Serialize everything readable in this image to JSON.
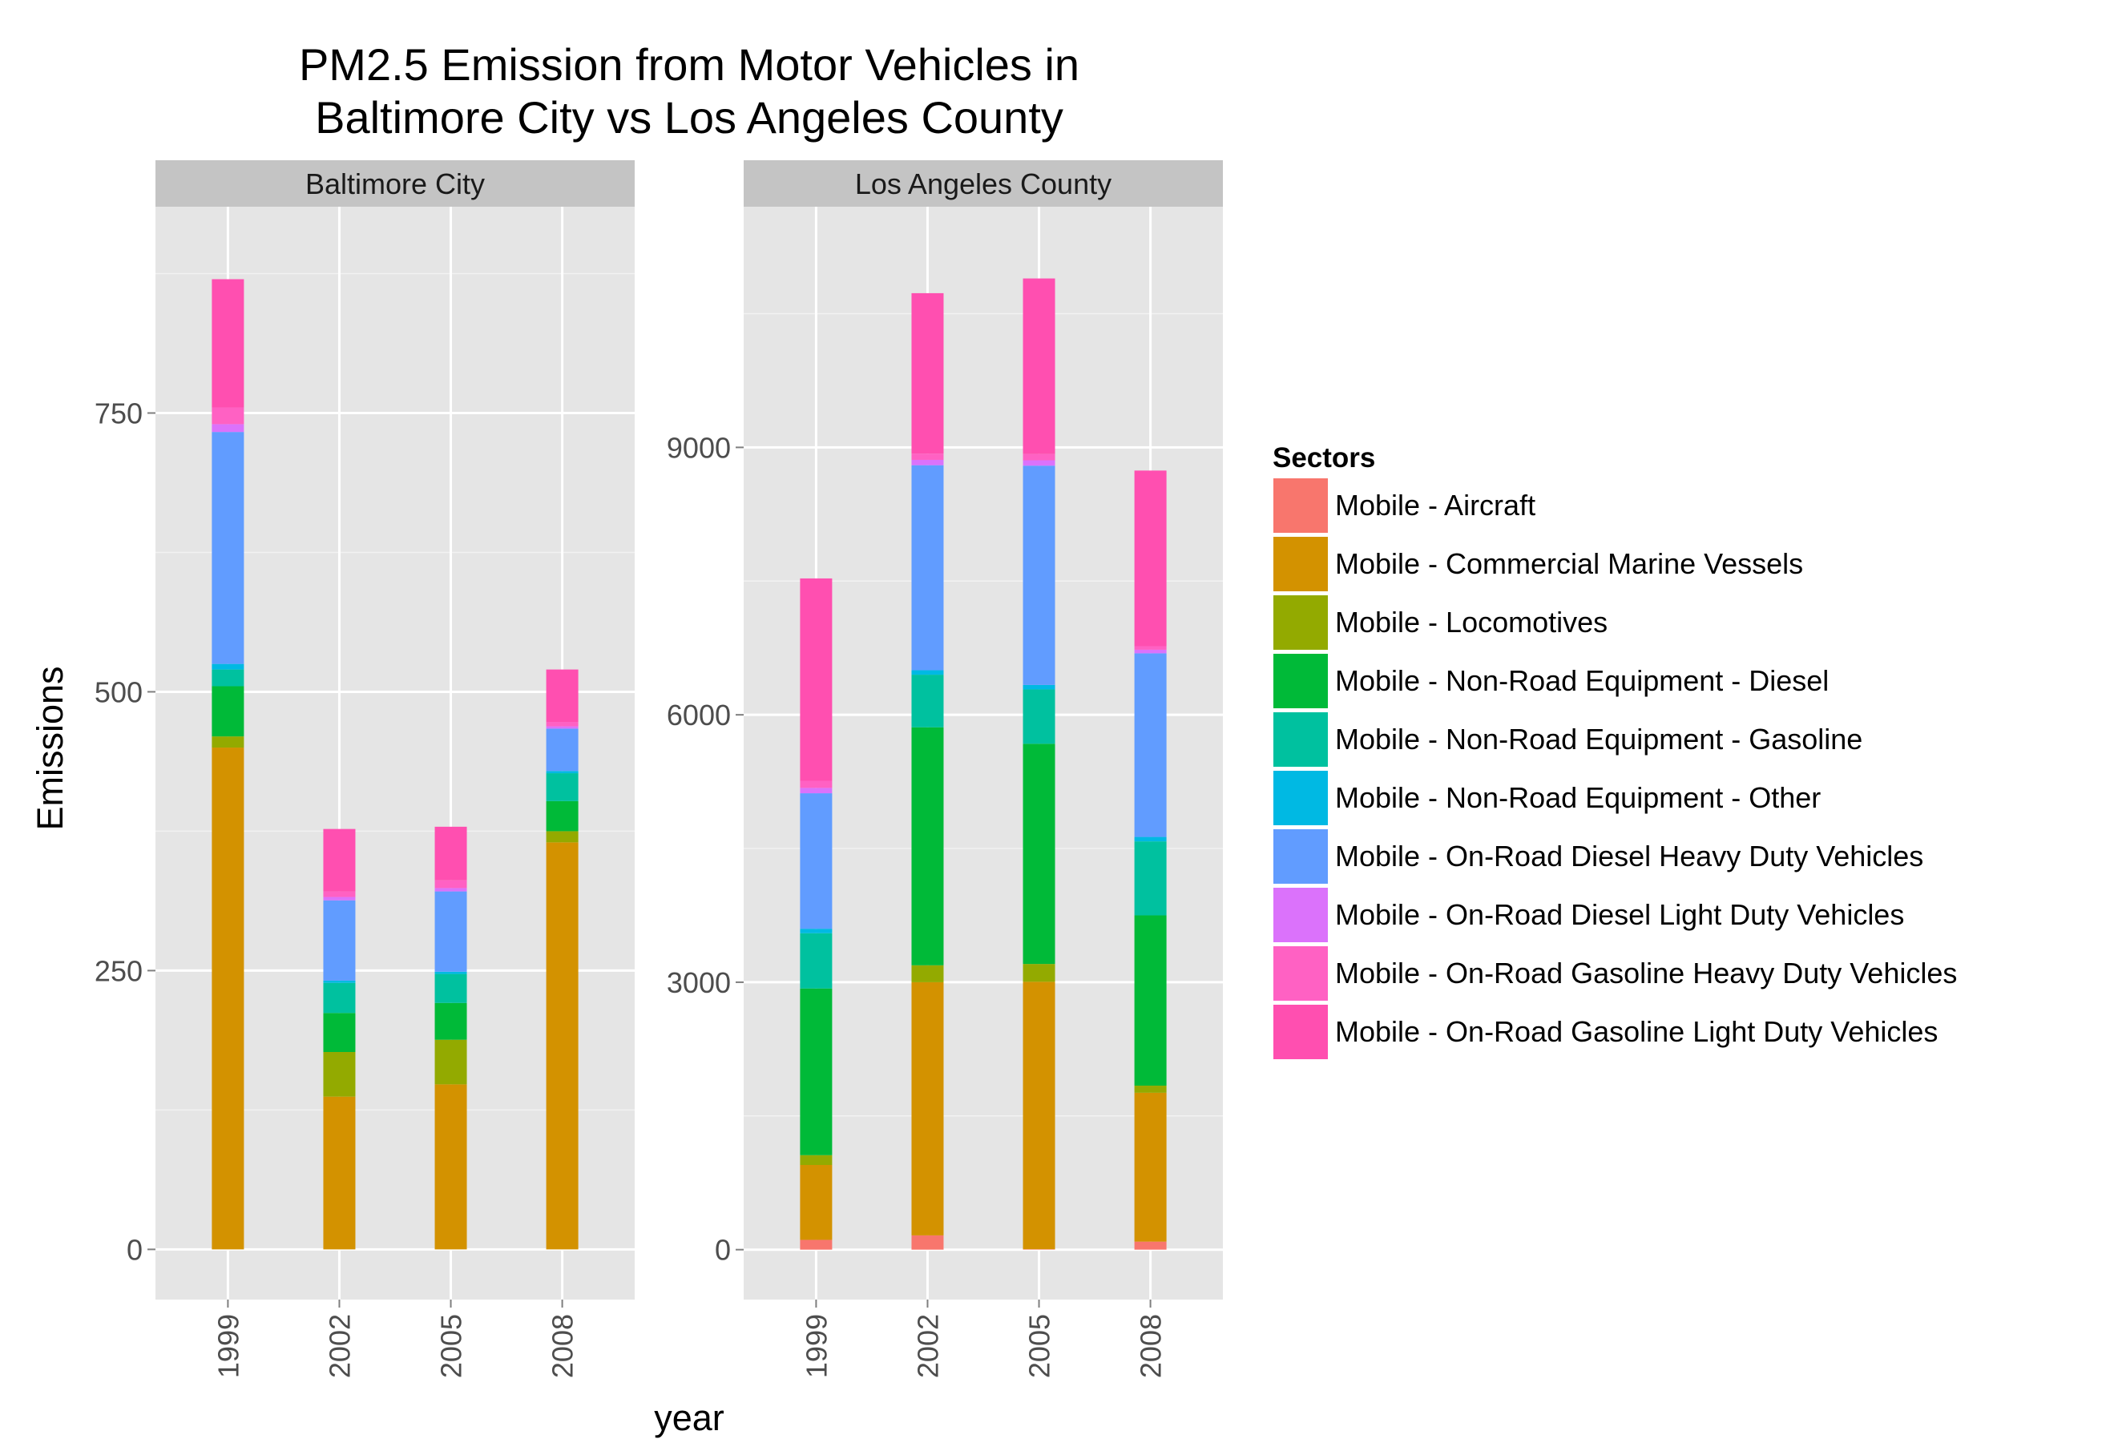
{
  "chart_data": {
    "type": "bar",
    "stacked": true,
    "title": "PM2.5 Emission from Motor Vehicles in\nBaltimore City vs Los Angeles County",
    "title_lines": [
      "PM2.5 Emission from Motor Vehicles in",
      "Baltimore City vs Los Angeles County"
    ],
    "xlabel": "year",
    "ylabel": "Emissions",
    "categories": [
      "1999",
      "2002",
      "2005",
      "2008"
    ],
    "legend": {
      "title": "Sectors",
      "position": "right"
    },
    "grid": true,
    "sectors": [
      {
        "name": "Mobile - Aircraft",
        "color": "#F8766D"
      },
      {
        "name": "Mobile - Commercial Marine Vessels",
        "color": "#D39200"
      },
      {
        "name": "Mobile - Locomotives",
        "color": "#93AA00"
      },
      {
        "name": "Mobile - Non-Road Equipment - Diesel",
        "color": "#00BA38"
      },
      {
        "name": "Mobile - Non-Road Equipment - Gasoline",
        "color": "#00C19F"
      },
      {
        "name": "Mobile - Non-Road Equipment - Other",
        "color": "#00B9E3"
      },
      {
        "name": "Mobile - On-Road Diesel Heavy Duty Vehicles",
        "color": "#619CFF"
      },
      {
        "name": "Mobile - On-Road Diesel Light Duty Vehicles",
        "color": "#DB72FB"
      },
      {
        "name": "Mobile - On-Road Gasoline Heavy Duty Vehicles",
        "color": "#FF61C3"
      },
      {
        "name": "Mobile - On-Road Gasoline Light Duty Vehicles",
        "color": "#FF4FB0"
      }
    ],
    "panels": [
      {
        "name": "Baltimore City",
        "ylim": [
          -45,
          935
        ],
        "yticks": [
          0,
          250,
          500,
          750
        ],
        "series": [
          {
            "name": "Mobile - Aircraft",
            "values": [
              0,
              0,
              0,
              0
            ]
          },
          {
            "name": "Mobile - Commercial Marine Vessels",
            "values": [
              450,
              137,
              148,
              365
            ]
          },
          {
            "name": "Mobile - Locomotives",
            "values": [
              10,
              40,
              40,
              10
            ]
          },
          {
            "name": "Mobile - Non-Road Equipment - Diesel",
            "values": [
              45,
              35,
              33,
              27
            ]
          },
          {
            "name": "Mobile - Non-Road Equipment - Gasoline",
            "values": [
              15,
              27,
              26,
              25
            ]
          },
          {
            "name": "Mobile - Non-Road Equipment - Other",
            "values": [
              5,
              2,
              2,
              2
            ]
          },
          {
            "name": "Mobile - On-Road Diesel Heavy Duty Vehicles",
            "values": [
              208,
              72,
              72,
              38
            ]
          },
          {
            "name": "Mobile - On-Road Diesel Light Duty Vehicles",
            "values": [
              7,
              3,
              3,
              2
            ]
          },
          {
            "name": "Mobile - On-Road Gasoline Heavy Duty Vehicles",
            "values": [
              15,
              5,
              7,
              4
            ]
          },
          {
            "name": "Mobile - On-Road Gasoline Light Duty Vehicles",
            "values": [
              115,
              56,
              48,
              47
            ]
          }
        ]
      },
      {
        "name": "Los Angeles County",
        "ylim": [
          -560,
          11700
        ],
        "yticks": [
          0,
          3000,
          6000,
          9000
        ],
        "series": [
          {
            "name": "Mobile - Aircraft",
            "values": [
              110,
              160,
              5,
              90
            ]
          },
          {
            "name": "Mobile - Commercial Marine Vessels",
            "values": [
              840,
              2840,
              3000,
              1670
            ]
          },
          {
            "name": "Mobile - Locomotives",
            "values": [
              110,
              190,
              200,
              80
            ]
          },
          {
            "name": "Mobile - Non-Road Equipment - Diesel",
            "values": [
              1870,
              2670,
              2470,
              1910
            ]
          },
          {
            "name": "Mobile - Non-Road Equipment - Gasoline",
            "values": [
              620,
              590,
              610,
              830
            ]
          },
          {
            "name": "Mobile - Non-Road Equipment - Other",
            "values": [
              50,
              50,
              50,
              50
            ]
          },
          {
            "name": "Mobile - On-Road Diesel Heavy Duty Vehicles",
            "values": [
              1520,
              2300,
              2460,
              2060
            ]
          },
          {
            "name": "Mobile - On-Road Diesel Light Duty Vehicles",
            "values": [
              60,
              60,
              60,
              40
            ]
          },
          {
            "name": "Mobile - On-Road Gasoline Heavy Duty Vehicles",
            "values": [
              80,
              70,
              70,
              40
            ]
          },
          {
            "name": "Mobile - On-Road Gasoline Light Duty Vehicles",
            "values": [
              2270,
              1800,
              1970,
              1970
            ]
          }
        ]
      }
    ]
  }
}
